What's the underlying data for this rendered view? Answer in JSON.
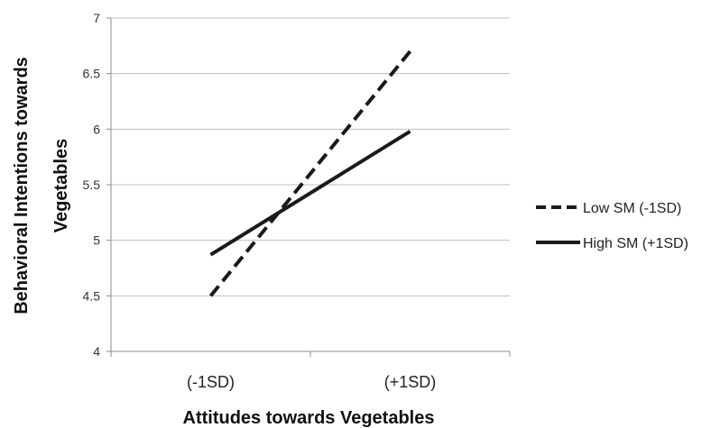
{
  "chart_data": {
    "type": "line",
    "categories": [
      "(-1SD)",
      "(+1SD)"
    ],
    "series": [
      {
        "name": "Low SM (-1SD)",
        "values": [
          4.5,
          6.7
        ],
        "dash": "dashed",
        "color": "#1a1a1a"
      },
      {
        "name": "High SM (+1SD)",
        "values": [
          4.87,
          5.98
        ],
        "dash": "solid",
        "color": "#1a1a1a"
      }
    ],
    "xlabel": "Attitudes towards Vegetables",
    "ylabel_lines": [
      "Behavioral Intentions towards",
      "Vegetables"
    ],
    "ylim": [
      4,
      7
    ],
    "yticks": [
      "4",
      "4.5",
      "5",
      "5.5",
      "6",
      "6.5",
      "7"
    ],
    "ytick_values": [
      4,
      4.5,
      5,
      5.5,
      6,
      6.5,
      7
    ],
    "grid": true,
    "gridline_color": "#bfbfbf",
    "legend_position": "right"
  }
}
